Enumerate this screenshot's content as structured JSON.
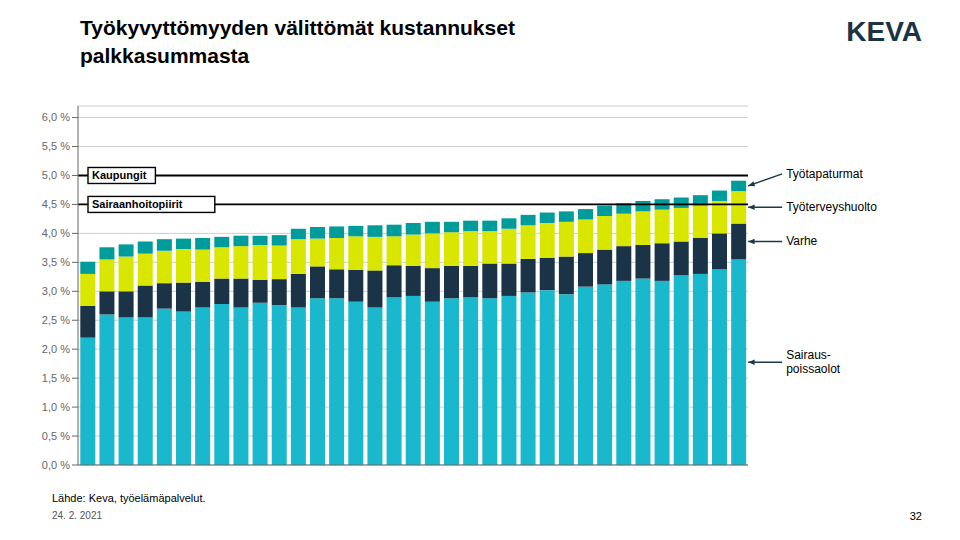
{
  "chart_data": {
    "type": "bar",
    "stacked": true,
    "grid": true,
    "tick_labels": "y",
    "title": "Työkyvyttömyyden välittömät kustannukset\npalkkasummasta",
    "annotations": [
      "Lähde: Keva, työelämäpalvelut.",
      "24. 2. 2021",
      "32",
      "KEVA"
    ],
    "reference_lines": [
      {
        "value": 0.05,
        "label": "Kaupungit"
      },
      {
        "value": 0.045,
        "label": "Sairaanhoitopiirit"
      }
    ],
    "categories": [
      null,
      null,
      null,
      null,
      null,
      null,
      null,
      null,
      null,
      null,
      null,
      null,
      null,
      null,
      null,
      null,
      null,
      null,
      null,
      null,
      null,
      null,
      null,
      null,
      null,
      null,
      null,
      null,
      null,
      null,
      null,
      null,
      null,
      null,
      null
    ],
    "series": [
      {
        "name": "Sairaus-\npoissaolot",
        "color": "#1ab8cc",
        "values": [
          0.022,
          0.026,
          0.0255,
          0.0255,
          0.027,
          0.0265,
          0.0272,
          0.0278,
          0.0272,
          0.028,
          0.0276,
          0.0272,
          0.0288,
          0.0288,
          0.0282,
          0.0272,
          0.029,
          0.0292,
          0.0282,
          0.0288,
          0.029,
          0.0288,
          0.0292,
          0.0298,
          0.0302,
          0.0295,
          0.0308,
          0.0312,
          0.0318,
          0.0322,
          0.0318,
          0.0328,
          0.033,
          0.0338,
          0.0355
        ]
      },
      {
        "name": "Varhe",
        "color": "#1a3346",
        "values": [
          0.0055,
          0.004,
          0.0045,
          0.0055,
          0.0044,
          0.005,
          0.0044,
          0.0044,
          0.005,
          0.004,
          0.0045,
          0.0058,
          0.0055,
          0.005,
          0.0055,
          0.0064,
          0.0055,
          0.0052,
          0.0058,
          0.0056,
          0.0054,
          0.006,
          0.0056,
          0.0058,
          0.0056,
          0.0065,
          0.0058,
          0.006,
          0.006,
          0.0058,
          0.0065,
          0.0058,
          0.0062,
          0.0062,
          0.0062
        ]
      },
      {
        "name": "Työterveyshuolto",
        "color": "#d9e600",
        "values": [
          0.0055,
          0.0055,
          0.006,
          0.0055,
          0.0056,
          0.0058,
          0.0056,
          0.0054,
          0.0056,
          0.006,
          0.0058,
          0.006,
          0.0048,
          0.0054,
          0.0058,
          0.0058,
          0.005,
          0.0054,
          0.006,
          0.0058,
          0.006,
          0.0056,
          0.006,
          0.0058,
          0.006,
          0.006,
          0.0058,
          0.0058,
          0.0056,
          0.0058,
          0.0058,
          0.0058,
          0.0056,
          0.0056,
          0.0056
        ]
      },
      {
        "name": "Työtapaturmat",
        "color": "#009b9b",
        "values": [
          0.0021,
          0.0021,
          0.0021,
          0.0021,
          0.002,
          0.0018,
          0.002,
          0.0018,
          0.0018,
          0.0016,
          0.0018,
          0.0018,
          0.002,
          0.002,
          0.0018,
          0.002,
          0.002,
          0.002,
          0.002,
          0.0018,
          0.0018,
          0.0018,
          0.0018,
          0.0018,
          0.0018,
          0.0018,
          0.0018,
          0.0018,
          0.0018,
          0.0018,
          0.0018,
          0.0018,
          0.0018,
          0.0018,
          0.0018
        ]
      }
    ],
    "ylim": [
      0,
      0.062
    ],
    "yticks": [
      {
        "value": 0.0,
        "label": "0,0 %"
      },
      {
        "value": 0.005,
        "label": "0,5 %"
      },
      {
        "value": 0.01,
        "label": "1,0 %"
      },
      {
        "value": 0.015,
        "label": "1,5 %"
      },
      {
        "value": 0.02,
        "label": "2,0 %"
      },
      {
        "value": 0.025,
        "label": "2,5 %"
      },
      {
        "value": 0.03,
        "label": "3,0 %"
      },
      {
        "value": 0.035,
        "label": "3,5 %"
      },
      {
        "value": 0.04,
        "label": "4,0 %"
      },
      {
        "value": 0.045,
        "label": "4,5 %"
      },
      {
        "value": 0.05,
        "label": "5,0 %"
      },
      {
        "value": 0.055,
        "label": "5,5 %"
      },
      {
        "value": 0.06,
        "label": "6,0 %"
      }
    ]
  }
}
